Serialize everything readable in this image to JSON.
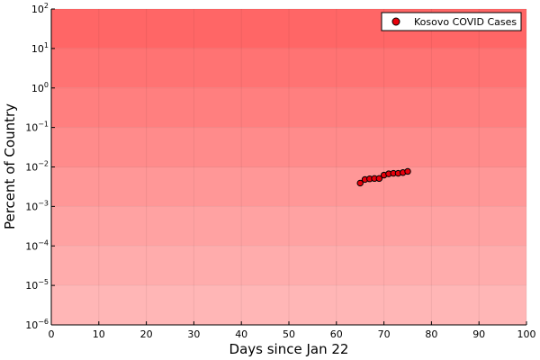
{
  "chart_data": {
    "type": "scatter",
    "xlabel": "Days since Jan 22",
    "ylabel": "Percent of Country",
    "xlim": [
      0,
      100
    ],
    "ylim_log10": [
      -6,
      2
    ],
    "y_scale": "log",
    "x_ticks": [
      0,
      10,
      20,
      30,
      40,
      50,
      60,
      70,
      80,
      90,
      100
    ],
    "y_ticks_exp": [
      -6,
      -5,
      -4,
      -3,
      -2,
      -1,
      0,
      1,
      2
    ],
    "y_tick_base": "10",
    "grid": true,
    "legend_position": "top-right",
    "band_colors": [
      "#ffb6b6",
      "#ffacac",
      "#ffa2a2",
      "#ff9797",
      "#ff8b8b",
      "#ff7f7f",
      "#ff7373",
      "#ff6666"
    ],
    "series": [
      {
        "name": "Kosovo COVID Cases",
        "color": "#e8000b",
        "points": [
          {
            "x": 65,
            "y": 0.0039
          },
          {
            "x": 66,
            "y": 0.0048
          },
          {
            "x": 67,
            "y": 0.005
          },
          {
            "x": 68,
            "y": 0.0051
          },
          {
            "x": 69,
            "y": 0.0051
          },
          {
            "x": 70,
            "y": 0.0062
          },
          {
            "x": 71,
            "y": 0.0067
          },
          {
            "x": 72,
            "y": 0.0069
          },
          {
            "x": 73,
            "y": 0.0069
          },
          {
            "x": 74,
            "y": 0.0072
          },
          {
            "x": 75,
            "y": 0.0077
          }
        ]
      }
    ]
  }
}
